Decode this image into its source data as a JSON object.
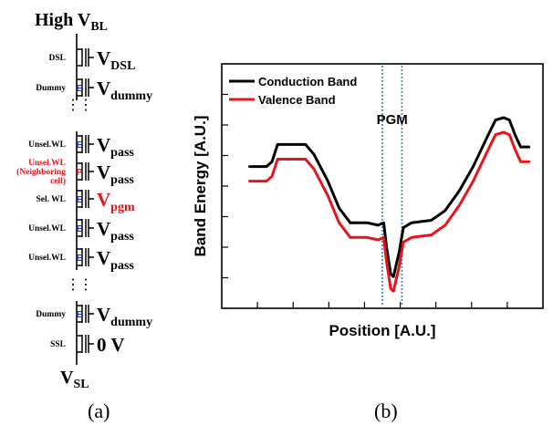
{
  "panel_a": {
    "top_label": {
      "main": "High V",
      "sub": "BL"
    },
    "bottom_label": {
      "main": "V",
      "sub": "SL"
    },
    "caption": "(a)",
    "dots": "⋮",
    "rows": [
      {
        "left": "DSL",
        "cell": "",
        "volt_main": "V",
        "volt_sub": "DSL",
        "highlight": false
      },
      {
        "left": "Dummy",
        "cell": "E",
        "volt_main": "V",
        "volt_sub": "dummy",
        "highlight": false
      },
      {
        "left": "Unsel.WL",
        "cell": "E",
        "volt_main": "V",
        "volt_sub": "pass",
        "highlight": false
      },
      {
        "left": "Unsel.WL\n(Neighboring\ncell)",
        "cell": "P",
        "volt_main": "V",
        "volt_sub": "pass",
        "highlight": true
      },
      {
        "left": "Sel. WL",
        "cell": "E",
        "volt_main": "V",
        "volt_sub": "pgm",
        "highlight": false
      },
      {
        "left": "Unsel.WL",
        "cell": "E",
        "volt_main": "V",
        "volt_sub": "pass",
        "highlight": false
      },
      {
        "left": "Unsel.WL",
        "cell": "E",
        "volt_main": "V",
        "volt_sub": "pass",
        "highlight": false
      },
      {
        "left": "Dummy",
        "cell": "E",
        "volt_main": "V",
        "volt_sub": "dummy",
        "highlight": false
      },
      {
        "left": "SSL",
        "cell": "",
        "volt_main": "0 V",
        "volt_sub": "",
        "highlight": false
      }
    ]
  },
  "panel_b": {
    "caption": "(b)",
    "chart_data": {
      "type": "line",
      "xlabel": "Position [A.U.]",
      "ylabel": "Band Energy [A.U.]",
      "annotation": "PGM",
      "legend_position": "top-left",
      "colors": {
        "conduction": "#000000",
        "valence": "#e8141c",
        "pgm_lines": "#4a90c8"
      },
      "series": [
        {
          "name": "Conduction Band",
          "color": "#000000",
          "points": [
            [
              0.0,
              0.53
            ],
            [
              0.06,
              0.53
            ],
            [
              0.08,
              0.55
            ],
            [
              0.1,
              0.62
            ],
            [
              0.2,
              0.62
            ],
            [
              0.23,
              0.58
            ],
            [
              0.28,
              0.47
            ],
            [
              0.32,
              0.36
            ],
            [
              0.36,
              0.3
            ],
            [
              0.42,
              0.3
            ],
            [
              0.46,
              0.29
            ],
            [
              0.48,
              0.3
            ],
            [
              0.49,
              0.2
            ],
            [
              0.505,
              0.09
            ],
            [
              0.515,
              0.08
            ],
            [
              0.535,
              0.18
            ],
            [
              0.55,
              0.28
            ],
            [
              0.58,
              0.3
            ],
            [
              0.65,
              0.31
            ],
            [
              0.7,
              0.35
            ],
            [
              0.75,
              0.43
            ],
            [
              0.8,
              0.53
            ],
            [
              0.85,
              0.65
            ],
            [
              0.88,
              0.72
            ],
            [
              0.91,
              0.73
            ],
            [
              0.93,
              0.72
            ],
            [
              0.95,
              0.66
            ],
            [
              0.97,
              0.61
            ],
            [
              1.0,
              0.61
            ]
          ]
        },
        {
          "name": "Valence Band",
          "color": "#e8141c",
          "points": [
            [
              0.0,
              0.47
            ],
            [
              0.06,
              0.47
            ],
            [
              0.08,
              0.49
            ],
            [
              0.1,
              0.56
            ],
            [
              0.2,
              0.56
            ],
            [
              0.23,
              0.52
            ],
            [
              0.28,
              0.41
            ],
            [
              0.32,
              0.3
            ],
            [
              0.36,
              0.24
            ],
            [
              0.42,
              0.24
            ],
            [
              0.46,
              0.23
            ],
            [
              0.48,
              0.24
            ],
            [
              0.49,
              0.14
            ],
            [
              0.505,
              0.03
            ],
            [
              0.515,
              0.02
            ],
            [
              0.535,
              0.12
            ],
            [
              0.55,
              0.22
            ],
            [
              0.58,
              0.24
            ],
            [
              0.65,
              0.25
            ],
            [
              0.7,
              0.29
            ],
            [
              0.75,
              0.37
            ],
            [
              0.8,
              0.47
            ],
            [
              0.85,
              0.59
            ],
            [
              0.88,
              0.66
            ],
            [
              0.91,
              0.67
            ],
            [
              0.93,
              0.66
            ],
            [
              0.95,
              0.6
            ],
            [
              0.97,
              0.55
            ],
            [
              1.0,
              0.55
            ]
          ]
        }
      ],
      "pgm_region": [
        0.475,
        0.545
      ],
      "xlim": [
        -0.1,
        1.05
      ],
      "ylim": [
        -0.05,
        0.95
      ]
    }
  }
}
